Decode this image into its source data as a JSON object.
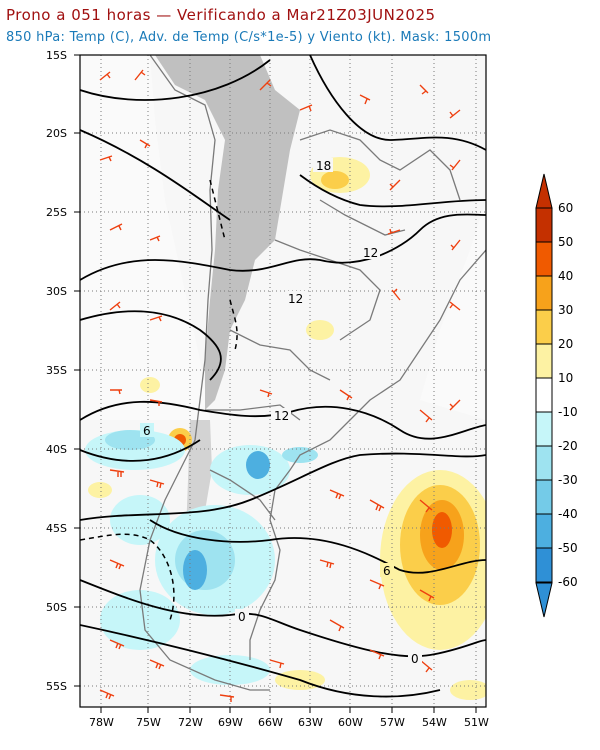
{
  "header": {
    "title": "Prono a 051 horas — Verificando a Mar21Z03JUN2025",
    "subtitle": "850 hPa: Temp (C), Adv. de Temp (C/s*1e-5) y Viento (kt). Mask: 1500m"
  },
  "map": {
    "lat_labels": [
      "15S",
      "20S",
      "25S",
      "30S",
      "35S",
      "40S",
      "45S",
      "50S",
      "55S"
    ],
    "lon_labels": [
      "78W",
      "75W",
      "72W",
      "69W",
      "66W",
      "63W",
      "60W",
      "57W",
      "54W",
      "51W"
    ],
    "contour_labels": [
      "18",
      "12",
      "12",
      "12",
      "6",
      "6",
      "0",
      "0"
    ]
  },
  "colorbar": {
    "labels": [
      "60",
      "50",
      "40",
      "30",
      "20",
      "10",
      "-10",
      "-20",
      "-30",
      "-40",
      "-50",
      "-60"
    ],
    "colors": [
      "#c43000",
      "#f05a00",
      "#f7a21b",
      "#fbce4a",
      "#fdf2a3",
      "#ffffff",
      "#c6f6f9",
      "#9ee3f0",
      "#74cbe8",
      "#4dafe0",
      "#2f90d6"
    ]
  }
}
